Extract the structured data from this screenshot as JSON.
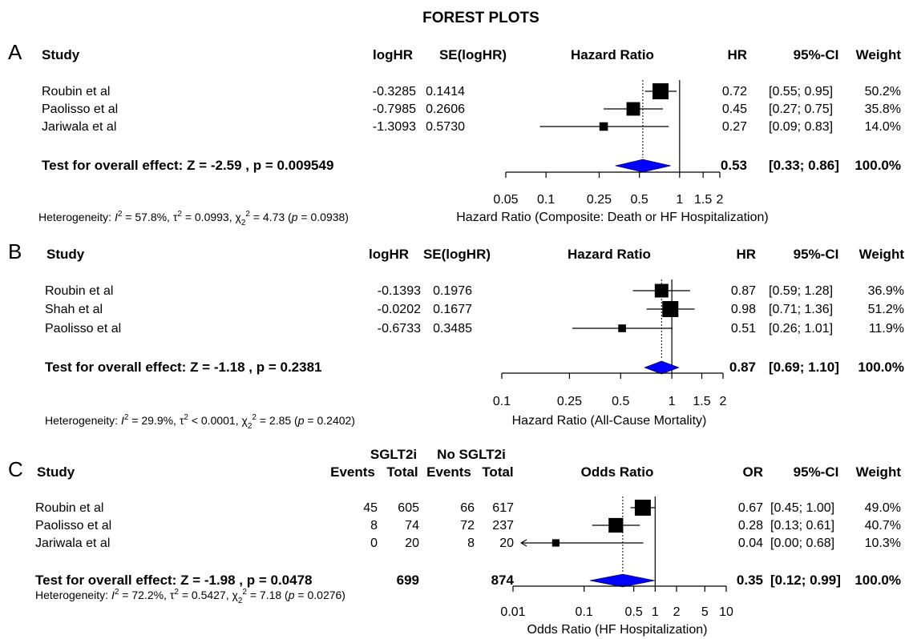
{
  "title": "FOREST PLOTS",
  "chart_data": [
    {
      "type": "forest",
      "panel": "A",
      "measure": "Hazard Ratio",
      "scale": "log",
      "xlim": [
        0.05,
        2
      ],
      "ticks": [
        {
          "value": 0.05,
          "label": "0.05"
        },
        {
          "value": 0.1,
          "label": "0.1"
        },
        {
          "value": 0.25,
          "label": "0.25"
        },
        {
          "value": 0.5,
          "label": "0.5"
        },
        {
          "value": 1,
          "label": "1"
        },
        {
          "value": 1.5,
          "label": "1.5"
        },
        {
          "value": 2,
          "label": "2"
        }
      ],
      "xlabel": "Hazard Ratio (Composite: Death or HF Hospitalization)",
      "headers": {
        "study": "Study",
        "col1": "logHR",
        "col2": "SE(logHR)",
        "plot": "Hazard Ratio",
        "est": "HR",
        "ci": "95%-CI",
        "weight": "Weight"
      },
      "studies": [
        {
          "name": "Roubin et al",
          "col1": "-0.3285",
          "col2": "0.1414",
          "est": 0.72,
          "lower": 0.55,
          "upper": 0.95,
          "est_label": "0.72",
          "ci_label": "[0.55; 0.95]",
          "weight": 50.2,
          "weight_label": "50.2%"
        },
        {
          "name": "Paolisso et al",
          "col1": "-0.7985",
          "col2": "0.2606",
          "est": 0.45,
          "lower": 0.27,
          "upper": 0.75,
          "est_label": "0.45",
          "ci_label": "[0.27; 0.75]",
          "weight": 35.8,
          "weight_label": "35.8%"
        },
        {
          "name": "Jariwala et al",
          "col1": "-1.3093",
          "col2": "0.5730",
          "est": 0.27,
          "lower": 0.09,
          "upper": 0.83,
          "est_label": "0.27",
          "ci_label": "[0.09; 0.83]",
          "weight": 14.0,
          "weight_label": "14.0%"
        }
      ],
      "overall": {
        "label": "Test for overall effect: Z = -2.59 , p = 0.009549",
        "est": 0.53,
        "lower": 0.33,
        "upper": 0.86,
        "est_label": "0.53",
        "ci_label": "[0.33; 0.86]",
        "weight_label": "100.0%",
        "col1": "",
        "col2": ""
      },
      "heterogeneity": {
        "I2": "57.8%",
        "tau2": "0.0993",
        "chi2": "4.73",
        "df": "2",
        "p": "0.0938"
      }
    },
    {
      "type": "forest",
      "panel": "B",
      "measure": "Hazard Ratio",
      "scale": "log",
      "xlim": [
        0.1,
        2
      ],
      "ticks": [
        {
          "value": 0.1,
          "label": "0.1"
        },
        {
          "value": 0.25,
          "label": "0.25"
        },
        {
          "value": 0.5,
          "label": "0.5"
        },
        {
          "value": 1,
          "label": "1"
        },
        {
          "value": 1.5,
          "label": "1.5"
        },
        {
          "value": 2,
          "label": "2"
        }
      ],
      "xlabel": "Hazard Ratio (All-Cause Mortality)",
      "headers": {
        "study": "Study",
        "col1": "logHR",
        "col2": "SE(logHR)",
        "plot": "Hazard Ratio",
        "est": "HR",
        "ci": "95%-CI",
        "weight": "Weight"
      },
      "studies": [
        {
          "name": "Roubin et al",
          "col1": "-0.1393",
          "col2": "0.1976",
          "est": 0.87,
          "lower": 0.59,
          "upper": 1.28,
          "est_label": "0.87",
          "ci_label": "[0.59; 1.28]",
          "weight": 36.9,
          "weight_label": "36.9%"
        },
        {
          "name": "Shah et al",
          "col1": "-0.0202",
          "col2": "0.1677",
          "est": 0.98,
          "lower": 0.71,
          "upper": 1.36,
          "est_label": "0.98",
          "ci_label": "[0.71; 1.36]",
          "weight": 51.2,
          "weight_label": "51.2%"
        },
        {
          "name": "Paolisso et al",
          "col1": "-0.6733",
          "col2": "0.3485",
          "est": 0.51,
          "lower": 0.26,
          "upper": 1.01,
          "est_label": "0.51",
          "ci_label": "[0.26; 1.01]",
          "weight": 11.9,
          "weight_label": "11.9%"
        }
      ],
      "overall": {
        "label": "Test for overall effect: Z = -1.18 , p = 0.2381",
        "est": 0.87,
        "lower": 0.69,
        "upper": 1.1,
        "est_label": "0.87",
        "ci_label": "[0.69; 1.10]",
        "weight_label": "100.0%",
        "col1": "",
        "col2": ""
      },
      "heterogeneity": {
        "I2": "29.9%",
        "tau2": "< 0.0001",
        "chi2": "2.85",
        "df": "2",
        "p": "0.2402"
      }
    },
    {
      "type": "forest",
      "panel": "C",
      "measure": "Odds Ratio",
      "scale": "log",
      "xlim": [
        0.01,
        10
      ],
      "ticks": [
        {
          "value": 0.01,
          "label": "0.01"
        },
        {
          "value": 0.1,
          "label": "0.1"
        },
        {
          "value": 0.5,
          "label": "0.5"
        },
        {
          "value": 1,
          "label": "1"
        },
        {
          "value": 2,
          "label": "2"
        },
        {
          "value": 5,
          "label": "5"
        },
        {
          "value": 10,
          "label": "10"
        }
      ],
      "xlabel": "Odds Ratio (HF Hospitalization)",
      "group_headers": {
        "g1": "SGLT2i",
        "g2": "No SGLT2i"
      },
      "headers": {
        "study": "Study",
        "c1": "Events",
        "c2": "Total",
        "c3": "Events",
        "c4": "Total",
        "plot": "Odds Ratio",
        "est": "OR",
        "ci": "95%-CI",
        "weight": "Weight"
      },
      "studies": [
        {
          "name": "Roubin et al",
          "c1": "45",
          "c2": "605",
          "c3": "66",
          "c4": "617",
          "est": 0.67,
          "lower": 0.45,
          "upper": 1.0,
          "est_label": "0.67",
          "ci_label": "[0.45; 1.00]",
          "weight": 49.0,
          "weight_label": "49.0%"
        },
        {
          "name": "Paolisso et al",
          "c1": "8",
          "c2": "74",
          "c3": "72",
          "c4": "237",
          "est": 0.28,
          "lower": 0.13,
          "upper": 0.61,
          "est_label": "0.28",
          "ci_label": "[0.13; 0.61]",
          "weight": 40.7,
          "weight_label": "40.7%"
        },
        {
          "name": "Jariwala et al",
          "c1": "0",
          "c2": "20",
          "c3": "8",
          "c4": "20",
          "est": 0.04,
          "lower": 0.0,
          "upper": 0.68,
          "est_label": "0.04",
          "ci_label": "[0.00; 0.68]",
          "weight": 10.3,
          "weight_label": "10.3%"
        }
      ],
      "overall": {
        "label": "Test for overall effect: Z = -1.98 , p = 0.0478",
        "est": 0.35,
        "lower": 0.12,
        "upper": 0.99,
        "est_label": "0.35",
        "ci_label": "[0.12; 0.99]",
        "weight_label": "100.0%",
        "c2": "699",
        "c4": "874"
      },
      "heterogeneity": {
        "I2": "72.2%",
        "tau2": "0.5427",
        "chi2": "7.18",
        "df": "2",
        "p": "0.0276"
      }
    }
  ]
}
